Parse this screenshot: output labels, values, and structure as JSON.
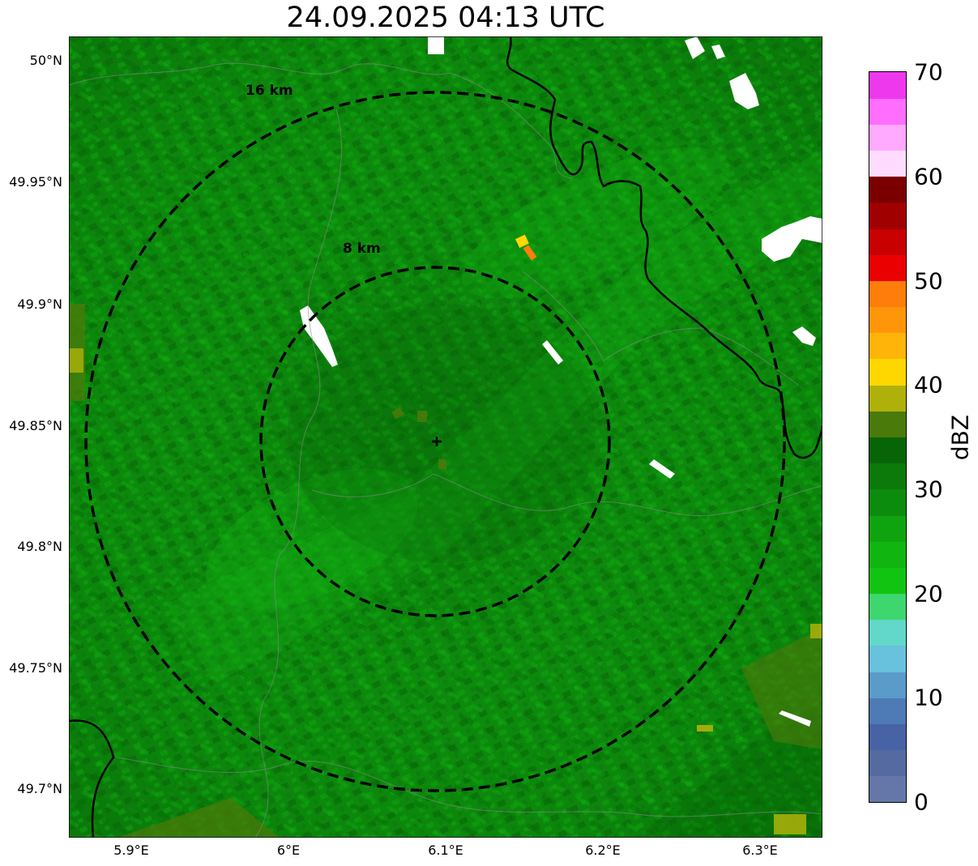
{
  "title": "24.09.2025 04:13 UTC",
  "map": {
    "lon_range": [
      5.86,
      6.34
    ],
    "lat_range": [
      49.68,
      50.01
    ],
    "radar_center": {
      "lon": 6.094,
      "lat": 49.843
    },
    "range_rings": [
      {
        "label": "8 km",
        "radius_km": 8
      },
      {
        "label": "16 km",
        "radius_km": 16
      }
    ],
    "lat_ticks": [
      "50°N",
      "49.95°N",
      "49.9°N",
      "49.85°N",
      "49.8°N",
      "49.75°N",
      "49.7°N"
    ],
    "lon_ticks": [
      "5.9°E",
      "6°E",
      "6.1°E",
      "6.2°E",
      "6.3°E"
    ]
  },
  "colorbar": {
    "label": "dBZ",
    "ticks": [
      "0",
      "10",
      "20",
      "30",
      "40",
      "50",
      "60",
      "70"
    ],
    "colors": [
      "#6477a8",
      "#556aa0",
      "#4762a5",
      "#4e7ab5",
      "#5a9bc9",
      "#68c1dd",
      "#61d8c9",
      "#3ed66e",
      "#12c412",
      "#10b510",
      "#0fa40f",
      "#0c8c0c",
      "#0b7a0b",
      "#076507",
      "#4a7a0a",
      "#afb10a",
      "#ffd700",
      "#ffb40a",
      "#ff960a",
      "#ff7d0a",
      "#ea0000",
      "#c80000",
      "#a00000",
      "#7a0000",
      "#ffdcff",
      "#ffaaff",
      "#ff6eff",
      "#ee38ee"
    ]
  }
}
